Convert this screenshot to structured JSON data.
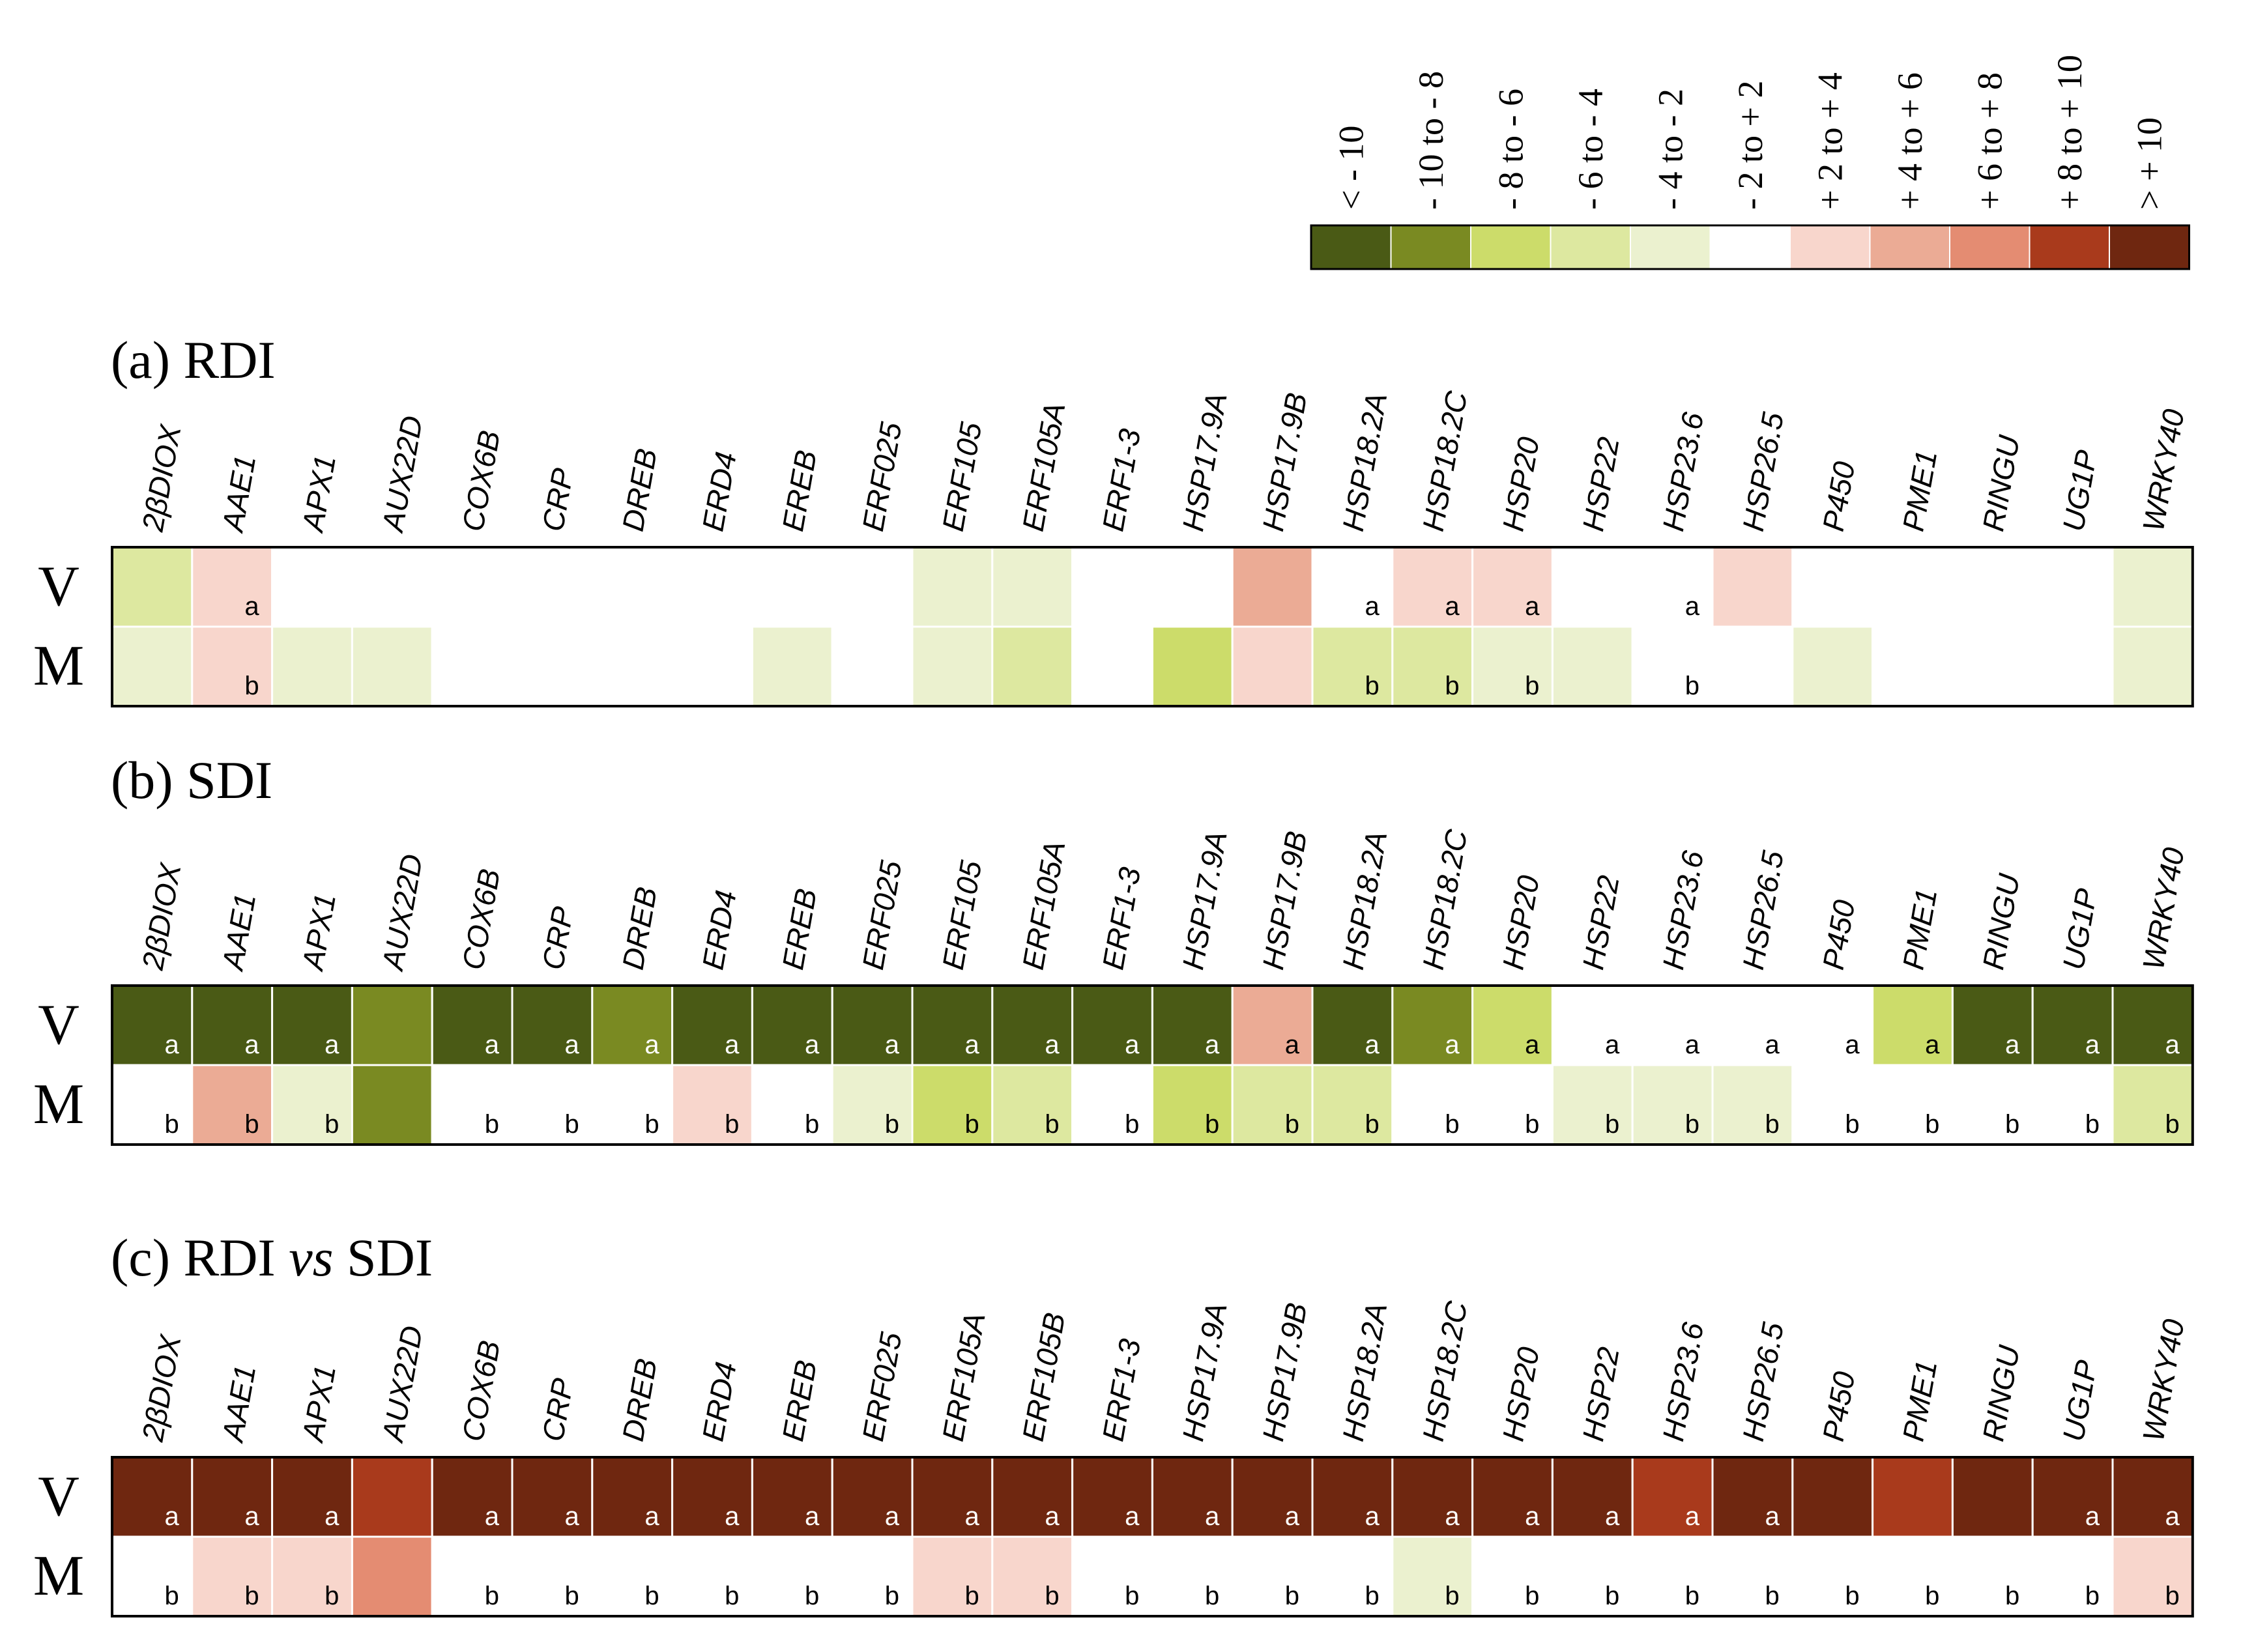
{
  "chart_data": {
    "type": "heatmap",
    "legend": {
      "labels": [
        "< - 10",
        "- 10 to - 8",
        "- 8 to - 6",
        "- 6 to - 4",
        "- 4 to - 2",
        "- 2 to + 2",
        "+ 2 to + 4",
        "+ 4 to + 6",
        "+ 6 to + 8",
        "+ 8 to + 10",
        "> + 10"
      ],
      "colors": [
        "#4a5a15",
        "#7a8a22",
        "#ccdc6a",
        "#dde8a0",
        "#ebf1cf",
        "#ffffff",
        "#f8d6cc",
        "#ebab95",
        "#e48c72",
        "#a93a1c",
        "#6f2710"
      ]
    },
    "row_labels": [
      "V",
      "M"
    ],
    "panels": [
      {
        "title": "(a) RDI",
        "genes": [
          "2βDIOX",
          "AAE1",
          "APX1",
          "AUX22D",
          "COX6B",
          "CRP",
          "DREB",
          "ERD4",
          "EREB",
          "ERF025",
          "ERF105",
          "ERF105A",
          "ERF1-3",
          "HSP17.9A",
          "HSP17.9B",
          "HSP18.2A",
          "HSP18.2C",
          "HSP20",
          "HSP22",
          "HSP23.6",
          "HSP26.5",
          "P450",
          "PME1",
          "RINGU",
          "UG1P",
          "WRKY40"
        ],
        "V": [
          3,
          6,
          5,
          5,
          5,
          5,
          5,
          5,
          5,
          5,
          4,
          4,
          5,
          5,
          7,
          5,
          6,
          6,
          5,
          5,
          6,
          5,
          5,
          5,
          5,
          4
        ],
        "M": [
          4,
          6,
          4,
          4,
          5,
          5,
          5,
          5,
          4,
          5,
          4,
          3,
          5,
          2,
          6,
          3,
          3,
          4,
          4,
          5,
          5,
          4,
          5,
          5,
          5,
          4
        ],
        "V_letters": [
          "",
          "a",
          "",
          "",
          "",
          "",
          "",
          "",
          "",
          "",
          "",
          "",
          "",
          "",
          "",
          "a",
          "a",
          "a",
          "",
          "a",
          "",
          "",
          "",
          "",
          "",
          ""
        ],
        "M_letters": [
          "",
          "b",
          "",
          "",
          "",
          "",
          "",
          "",
          "",
          "",
          "",
          "",
          "",
          "",
          "",
          "b",
          "b",
          "b",
          "",
          "b",
          "",
          "",
          "",
          "",
          "",
          ""
        ]
      },
      {
        "title": "(b) SDI",
        "genes": [
          "2βDIOX",
          "AAE1",
          "APX1",
          "AUX22D",
          "COX6B",
          "CRP",
          "DREB",
          "ERD4",
          "EREB",
          "ERF025",
          "ERF105",
          "ERF105A",
          "ERF1-3",
          "HSP17.9A",
          "HSP17.9B",
          "HSP18.2A",
          "HSP18.2C",
          "HSP20",
          "HSP22",
          "HSP23.6",
          "HSP26.5",
          "P450",
          "PME1",
          "RINGU",
          "UG1P",
          "WRKY40"
        ],
        "V": [
          0,
          0,
          0,
          1,
          0,
          0,
          1,
          0,
          0,
          0,
          0,
          0,
          0,
          0,
          7,
          0,
          1,
          2,
          5,
          5,
          5,
          5,
          2,
          0,
          0,
          0
        ],
        "M": [
          5,
          7,
          4,
          1,
          5,
          5,
          5,
          6,
          5,
          4,
          2,
          3,
          5,
          2,
          3,
          3,
          5,
          5,
          4,
          4,
          4,
          5,
          5,
          5,
          5,
          3
        ],
        "V_letters": [
          "a",
          "a",
          "a",
          "",
          "a",
          "a",
          "a",
          "a",
          "a",
          "a",
          "a",
          "a",
          "a",
          "a",
          "a",
          "a",
          "a",
          "a",
          "a",
          "a",
          "a",
          "a",
          "a",
          "a",
          "a",
          "a"
        ],
        "M_letters": [
          "b",
          "b",
          "b",
          "",
          "b",
          "b",
          "b",
          "b",
          "b",
          "b",
          "b",
          "b",
          "b",
          "b",
          "b",
          "b",
          "b",
          "b",
          "b",
          "b",
          "b",
          "b",
          "b",
          "b",
          "b",
          "b"
        ]
      },
      {
        "title_parts": [
          "(c) RDI ",
          "vs",
          " SDI"
        ],
        "genes": [
          "2βDIOX",
          "AAE1",
          "APX1",
          "AUX22D",
          "COX6B",
          "CRP",
          "DREB",
          "ERD4",
          "EREB",
          "ERF025",
          "ERF105A",
          "ERF105B",
          "ERF1-3",
          "HSP17.9A",
          "HSP17.9B",
          "HSP18.2A",
          "HSP18.2C",
          "HSP20",
          "HSP22",
          "HSP23.6",
          "HSP26.5",
          "P450",
          "PME1",
          "RINGU",
          "UG1P",
          "WRKY40"
        ],
        "V": [
          10,
          10,
          10,
          9,
          10,
          10,
          10,
          10,
          10,
          10,
          10,
          10,
          10,
          10,
          10,
          10,
          10,
          10,
          10,
          9,
          10,
          10,
          9,
          10,
          10,
          10
        ],
        "M": [
          5,
          6,
          6,
          8,
          5,
          5,
          5,
          5,
          5,
          5,
          6,
          6,
          5,
          5,
          5,
          5,
          4,
          5,
          5,
          5,
          5,
          5,
          5,
          5,
          5,
          6
        ],
        "V_letters": [
          "a",
          "a",
          "a",
          "",
          "a",
          "a",
          "a",
          "a",
          "a",
          "a",
          "a",
          "a",
          "a",
          "a",
          "a",
          "a",
          "a",
          "a",
          "a",
          "a",
          "a",
          "",
          "",
          "",
          "a",
          "a"
        ],
        "M_letters": [
          "b",
          "b",
          "b",
          "",
          "b",
          "b",
          "b",
          "b",
          "b",
          "b",
          "b",
          "b",
          "b",
          "b",
          "b",
          "b",
          "b",
          "b",
          "b",
          "b",
          "b",
          "b",
          "b",
          "b",
          "b",
          "b"
        ]
      }
    ]
  }
}
